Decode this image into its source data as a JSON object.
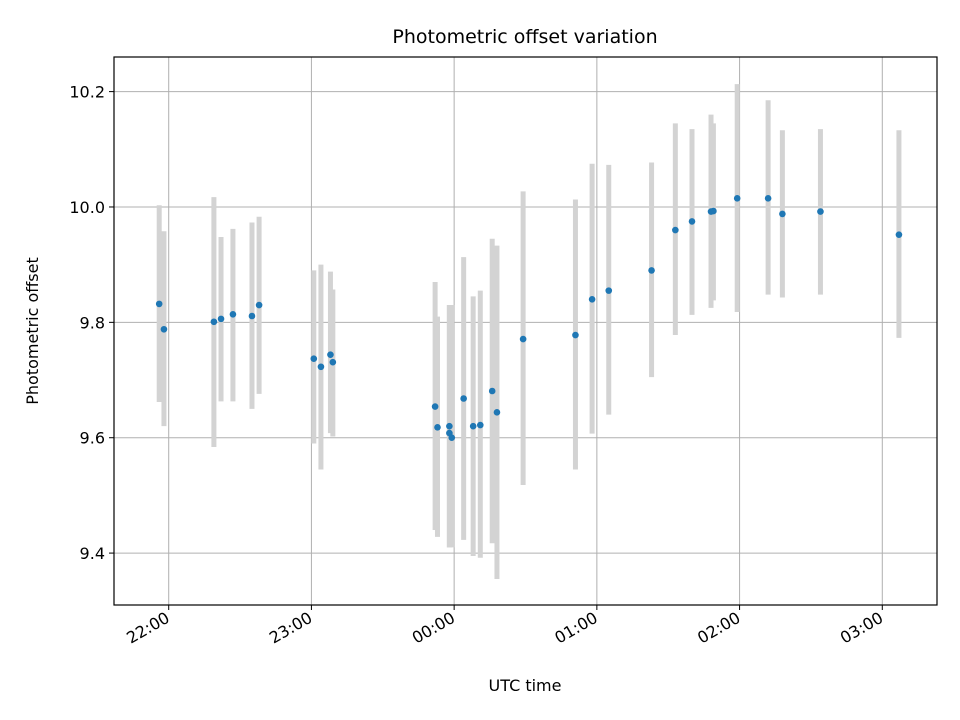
{
  "chart_data": {
    "type": "scatter",
    "title": "Photometric offset variation",
    "xlabel": "UTC time",
    "ylabel": "Photometric offset",
    "x_axis_type": "time",
    "xlim": [
      "21:37",
      "03:23"
    ],
    "ylim": [
      9.31,
      10.26
    ],
    "grid": true,
    "x_ticks": [
      "22:00",
      "23:00",
      "00:00",
      "01:00",
      "02:00",
      "03:00"
    ],
    "y_ticks": [
      9.4,
      9.6,
      9.8,
      10.0,
      10.2
    ],
    "y_tick_labels": [
      "9.4",
      "9.6",
      "9.8",
      "10.0",
      "10.2"
    ],
    "colors": {
      "points": "#1f77b4",
      "error_bars": "#d3d3d3",
      "grid": "#b0b0b0"
    },
    "series": [
      {
        "x": [
          "21:56",
          "21:58",
          "22:19",
          "22:22",
          "22:27",
          "22:35",
          "22:38",
          "23:01",
          "23:04",
          "23:08",
          "23:09",
          "23:52",
          "23:53",
          "23:58",
          "23:58",
          "23:59",
          "00:04",
          "00:08",
          "00:11",
          "00:16",
          "00:18",
          "00:29",
          "00:51",
          "00:58",
          "01:05",
          "01:23",
          "01:33",
          "01:40",
          "01:48",
          "01:49",
          "01:59",
          "02:12",
          "02:18",
          "02:34",
          "03:07"
        ],
        "y": [
          9.832,
          9.788,
          9.801,
          9.806,
          9.814,
          9.811,
          9.83,
          9.737,
          9.723,
          9.744,
          9.731,
          9.654,
          9.618,
          9.62,
          9.608,
          9.6,
          9.668,
          9.62,
          9.622,
          9.681,
          9.644,
          9.771,
          9.778,
          9.84,
          9.855,
          9.89,
          9.96,
          9.975,
          9.992,
          9.993,
          10.015,
          10.015,
          9.988,
          9.992,
          9.952
        ],
        "yerr_low": [
          9.662,
          9.62,
          9.584,
          9.663,
          9.663,
          9.65,
          9.676,
          9.59,
          9.545,
          9.608,
          9.602,
          9.44,
          9.428,
          9.41,
          9.41,
          9.41,
          9.423,
          9.395,
          9.392,
          9.417,
          9.355,
          9.518,
          9.545,
          9.607,
          9.64,
          9.705,
          9.778,
          9.813,
          9.825,
          9.838,
          9.818,
          9.848,
          9.843,
          9.848,
          9.773
        ],
        "yerr_high": [
          10.003,
          9.958,
          10.017,
          9.948,
          9.962,
          9.973,
          9.983,
          9.89,
          9.9,
          9.888,
          9.857,
          9.87,
          9.81,
          9.83,
          9.83,
          9.83,
          9.913,
          9.845,
          9.855,
          9.945,
          9.933,
          10.027,
          10.013,
          10.075,
          10.073,
          10.077,
          10.145,
          10.135,
          10.16,
          10.145,
          10.213,
          10.185,
          10.133,
          10.135,
          10.133
        ]
      }
    ]
  }
}
